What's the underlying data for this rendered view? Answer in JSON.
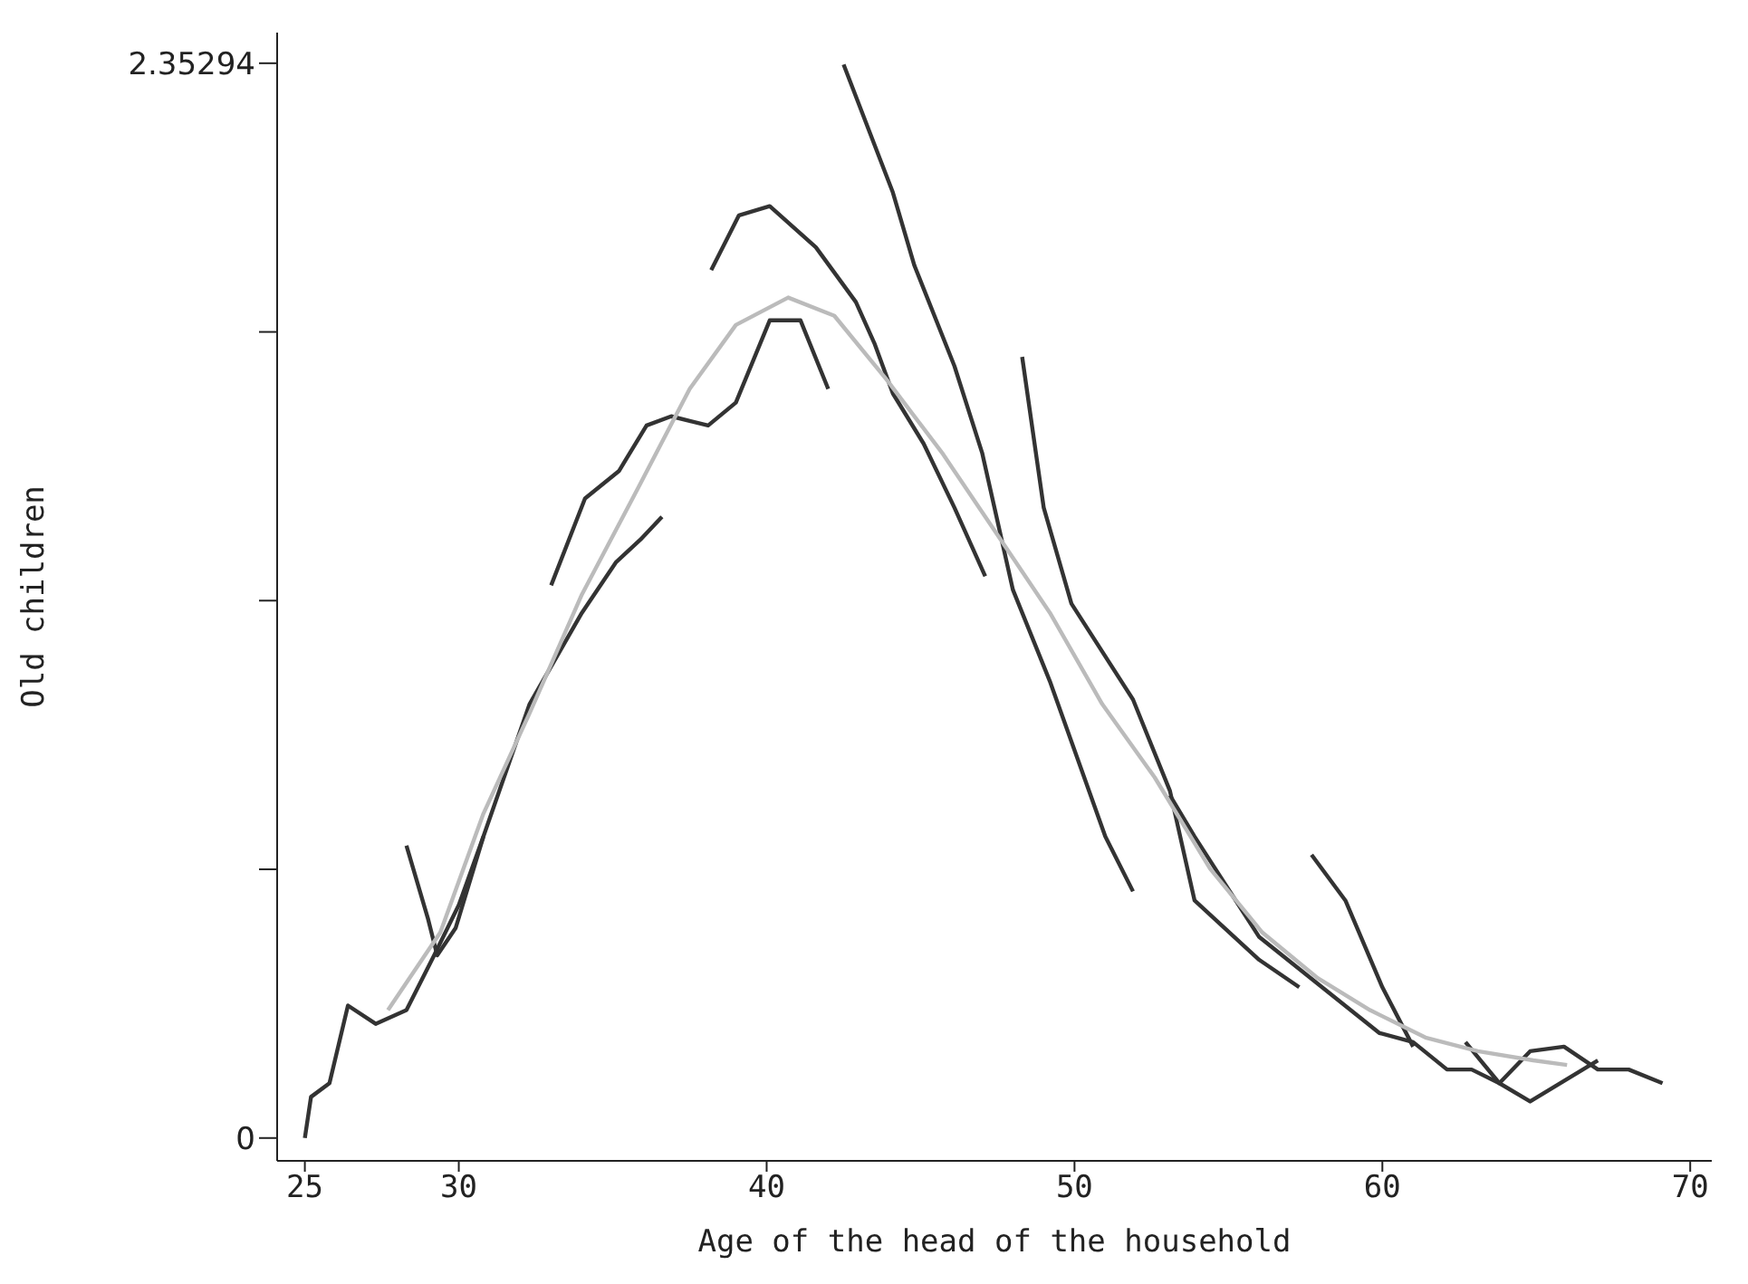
{
  "chart_data": {
    "type": "line",
    "xlabel": "Age of the head of the household",
    "ylabel": "Old children",
    "xlim": [
      24.1,
      70.7
    ],
    "xticks": [
      25,
      30,
      40,
      50,
      60,
      70
    ],
    "ylim": [
      -0.05,
      2.42
    ],
    "yticks": [
      0,
      {
        "value": 0.588235,
        "label": null
      },
      {
        "value": 1.17647,
        "label": null
      },
      {
        "value": 1.764705,
        "label": null
      },
      2.35294
    ],
    "grid": false,
    "legend": false,
    "marker": "none",
    "line_style": "solid",
    "series": [
      {
        "color": "#333333",
        "x": [
          25.0,
          25.2,
          25.8,
          26.4,
          27.3,
          28.3,
          29.2,
          30.0,
          30.8,
          32.3,
          34.0,
          35.1,
          35.9,
          36.6
        ],
        "values": [
          0,
          0.09,
          0.12,
          0.29,
          0.25,
          0.28,
          0.4,
          0.51,
          0.66,
          0.95,
          1.15,
          1.26,
          1.31,
          1.36
        ]
      },
      {
        "color": "#333333",
        "x": [
          28.3,
          29.0,
          29.3,
          29.9,
          30.8
        ],
        "values": [
          0.64,
          0.48,
          0.4,
          0.46,
          0.66
        ]
      },
      {
        "color": "#333333",
        "x": [
          33.0,
          34.1,
          35.2,
          36.1,
          36.9,
          38.1,
          39.0,
          40.1,
          41.1,
          42.0
        ],
        "values": [
          1.21,
          1.4,
          1.46,
          1.56,
          1.58,
          1.56,
          1.61,
          1.79,
          1.79,
          1.64
        ]
      },
      {
        "color": "#333333",
        "x": [
          38.2,
          39.1,
          40.1,
          41.6,
          42.9,
          43.5,
          44.1,
          45.1,
          46.1,
          47.1
        ],
        "values": [
          1.9,
          2.02,
          2.04,
          1.95,
          1.83,
          1.74,
          1.63,
          1.52,
          1.38,
          1.23
        ]
      },
      {
        "color": "#333333",
        "x": [
          42.5,
          43.7,
          44.1,
          44.8,
          46.1,
          47.0,
          47.5,
          48.0,
          49.2,
          50.1,
          51.0,
          51.9
        ],
        "values": [
          2.35,
          2.14,
          2.07,
          1.91,
          1.69,
          1.5,
          1.35,
          1.2,
          1.0,
          0.83,
          0.66,
          0.54
        ]
      },
      {
        "color": "#333333",
        "x": [
          48.3,
          49.0,
          49.9,
          51.9,
          53.1,
          53.9,
          56.0,
          57.3
        ],
        "values": [
          1.71,
          1.38,
          1.17,
          0.96,
          0.76,
          0.52,
          0.39,
          0.33
        ]
      },
      {
        "color": "#333333",
        "x": [
          53.1,
          53.9,
          56.0,
          59.9,
          61.0,
          62.1,
          62.9,
          63.8,
          64.8,
          65.9,
          67.0,
          68.0,
          69.1
        ],
        "values": [
          0.75,
          0.66,
          0.44,
          0.23,
          0.21,
          0.15,
          0.15,
          0.12,
          0.19,
          0.2,
          0.15,
          0.15,
          0.12
        ]
      },
      {
        "color": "#333333",
        "x": [
          57.7,
          58.8,
          60.0,
          61.0
        ],
        "values": [
          0.62,
          0.52,
          0.33,
          0.2
        ]
      },
      {
        "color": "#333333",
        "x": [
          62.7,
          63.8,
          64.8,
          67.0
        ],
        "values": [
          0.21,
          0.12,
          0.08,
          0.17
        ]
      },
      {
        "color": "#bbbbbb",
        "x": [
          27.7,
          29.4,
          30.8,
          32.3,
          34.0,
          35.8,
          37.5,
          39.0,
          40.7,
          42.2,
          43.9,
          45.7,
          47.4,
          49.2,
          50.9,
          52.6,
          54.4,
          56.1,
          57.9,
          59.6,
          61.4,
          63.1,
          64.9,
          66.0
        ],
        "values": [
          0.28,
          0.45,
          0.71,
          0.93,
          1.19,
          1.42,
          1.64,
          1.78,
          1.84,
          1.8,
          1.66,
          1.5,
          1.33,
          1.15,
          0.95,
          0.79,
          0.59,
          0.45,
          0.35,
          0.28,
          0.22,
          0.19,
          0.17,
          0.16
        ]
      }
    ]
  }
}
